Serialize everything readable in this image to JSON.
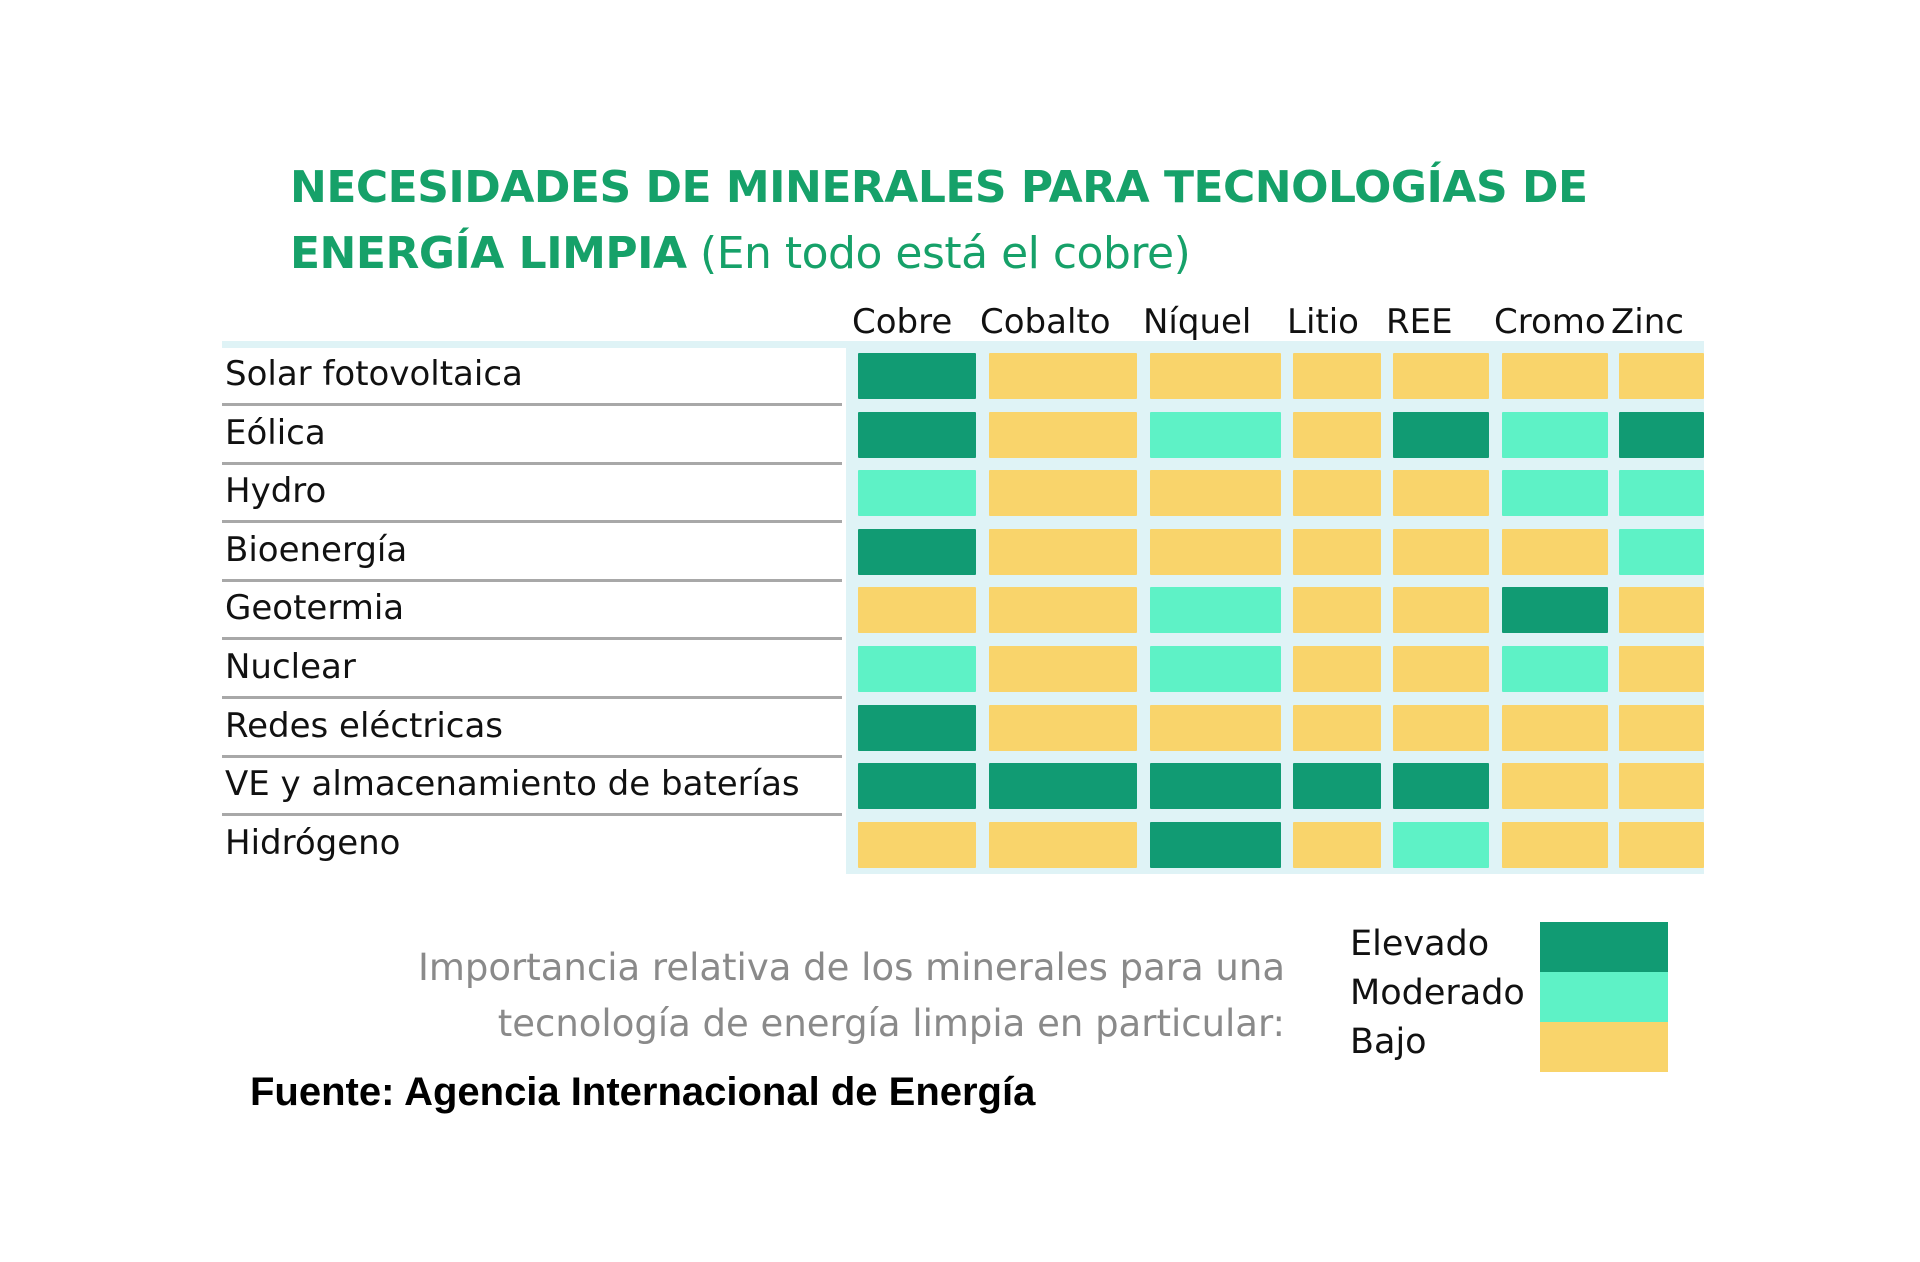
{
  "chart_data": {
    "type": "heatmap",
    "title": {
      "line1": "NECESIDADES DE MINERALES PARA TECNOLOGÍAS DE",
      "line2_bold": "ENERGÍA LIMPIA",
      "line2_normal": " (En todo está el cobre)"
    },
    "columns": [
      "Cobre",
      "Cobalto",
      "Níquel",
      "Litio",
      "REE",
      "Cromo",
      "Zinc"
    ],
    "rows": [
      "Solar fotovoltaica",
      "Eólica",
      "Hydro",
      "Bioenergía",
      "Geotermia",
      "Nuclear",
      "Redes eléctricas",
      "VE y almacenamiento de baterías",
      "Hidrógeno"
    ],
    "levels": [
      "Elevado",
      "Moderado",
      "Bajo"
    ],
    "values": [
      [
        "Elevado",
        "Bajo",
        "Bajo",
        "Bajo",
        "Bajo",
        "Bajo",
        "Bajo"
      ],
      [
        "Elevado",
        "Bajo",
        "Moderado",
        "Bajo",
        "Elevado",
        "Moderado",
        "Elevado"
      ],
      [
        "Moderado",
        "Bajo",
        "Bajo",
        "Bajo",
        "Bajo",
        "Moderado",
        "Moderado"
      ],
      [
        "Elevado",
        "Bajo",
        "Bajo",
        "Bajo",
        "Bajo",
        "Bajo",
        "Moderado"
      ],
      [
        "Bajo",
        "Bajo",
        "Moderado",
        "Bajo",
        "Bajo",
        "Elevado",
        "Bajo"
      ],
      [
        "Moderado",
        "Bajo",
        "Moderado",
        "Bajo",
        "Bajo",
        "Moderado",
        "Bajo"
      ],
      [
        "Elevado",
        "Bajo",
        "Bajo",
        "Bajo",
        "Bajo",
        "Bajo",
        "Bajo"
      ],
      [
        "Elevado",
        "Elevado",
        "Elevado",
        "Elevado",
        "Elevado",
        "Bajo",
        "Bajo"
      ],
      [
        "Bajo",
        "Bajo",
        "Elevado",
        "Bajo",
        "Moderado",
        "Bajo",
        "Bajo"
      ]
    ],
    "colors": {
      "Elevado": "#119b73",
      "Moderado": "#5ef2c6",
      "Bajo": "#f9d46b"
    },
    "legend": {
      "caption_line1": "Importancia relativa de los minerales para una",
      "caption_line2": "tecnología de energía limpia en particular:",
      "items": [
        "Elevado",
        "Moderado",
        "Bajo"
      ]
    },
    "source": "Fuente: Agencia Internacional de Energía"
  }
}
